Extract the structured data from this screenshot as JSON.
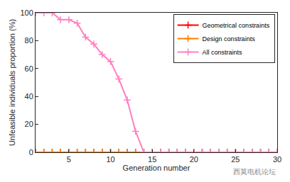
{
  "chart_data": {
    "type": "line",
    "x_label": "Generation number",
    "y_label": "Unfeasible individuals proportion (%)",
    "x": [
      1,
      2,
      3,
      4,
      5,
      6,
      7,
      8,
      9,
      10,
      11,
      12,
      13,
      14,
      15,
      16,
      17,
      18,
      19,
      20,
      21,
      22,
      23,
      24,
      25,
      26,
      27,
      28,
      29,
      30
    ],
    "series": [
      {
        "name": "Geometrical constraints",
        "color": "#ff0000",
        "values": [
          0,
          0,
          0,
          0,
          0,
          0,
          0,
          0,
          0,
          0,
          0,
          0,
          0,
          0,
          0,
          0,
          0,
          0,
          0,
          0,
          0,
          0,
          0,
          0,
          0,
          0,
          0,
          0,
          0,
          0
        ]
      },
      {
        "name": "Design constraints",
        "color": "#ff8000",
        "values": [
          0,
          0,
          0,
          0,
          0,
          0,
          0,
          0,
          0,
          0,
          0,
          0,
          0,
          0,
          0,
          0,
          0,
          0,
          0,
          0,
          0,
          0,
          0,
          0,
          0,
          0,
          0,
          0,
          0,
          0
        ]
      },
      {
        "name": "All constraints",
        "color": "#ff80c0",
        "values": [
          100,
          100,
          100,
          95,
          95,
          92.5,
          82.5,
          77.5,
          70,
          65,
          52.5,
          37.5,
          15,
          0,
          0,
          0,
          0,
          0,
          0,
          0,
          0,
          0,
          0,
          0,
          0,
          0,
          0,
          0,
          0,
          0
        ]
      }
    ],
    "xlim": [
      1,
      30
    ],
    "xticks": [
      5,
      10,
      15,
      20,
      25,
      30
    ],
    "ylim": [
      0,
      100
    ],
    "yticks": [
      0,
      20,
      40,
      60,
      80,
      100
    ],
    "grid": false,
    "legend": "top-right",
    "marker": "plus",
    "line_style": "solid",
    "annotations": [
      "西莫电机论坛"
    ]
  }
}
